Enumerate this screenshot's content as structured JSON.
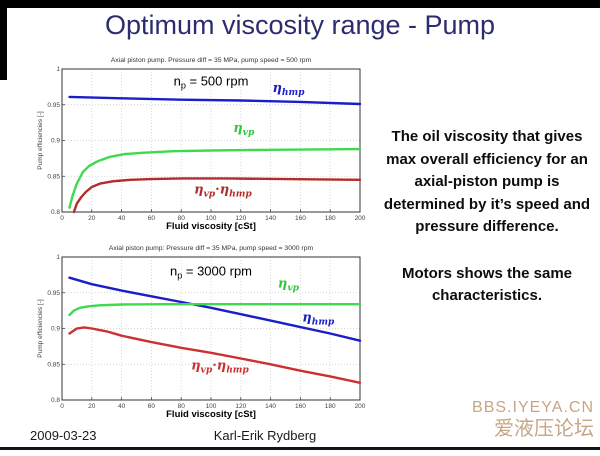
{
  "slide": {
    "title": "Optimum viscosity range - Pump",
    "colors": {
      "title": "#2b2d6e",
      "watermark": "#c7a685"
    },
    "side_note": {
      "para1": "The oil viscosity that gives max overall efficiency for an axial-piston pump is determined by it’s speed and pressure difference.",
      "para2": "Motors shows the same characteristics."
    },
    "footer": {
      "date": "2009-03-23",
      "author": "Karl-Erik Rydberg"
    },
    "watermark": {
      "line1": "BBS.IYEYA.CN",
      "line2": "爱液压论坛"
    }
  },
  "chart_data": [
    {
      "type": "line",
      "title": "Axial piston pump. Pressure diff = 35 MPa, pump speed = 500 rpm",
      "xlabel": "Fluid viscosity [cSt]",
      "ylabel": "Pump efficiencies [-]",
      "xlim": [
        0,
        200
      ],
      "ylim": [
        0.8,
        1
      ],
      "xticks": [
        0,
        20,
        40,
        60,
        80,
        100,
        120,
        140,
        160,
        180,
        200
      ],
      "yticks": [
        0.8,
        0.85,
        0.9,
        0.95,
        1
      ],
      "ytick_labels": [
        "0.8",
        "0.85",
        "0.9",
        "0.95",
        "1"
      ],
      "grid": true,
      "legend_position": "inline-annotations",
      "series": [
        {
          "name": "η{hmp}",
          "color": "#1a1ec8",
          "points": [
            [
              5,
              0.961
            ],
            [
              40,
              0.959
            ],
            [
              80,
              0.957
            ],
            [
              120,
              0.956
            ],
            [
              160,
              0.954
            ],
            [
              200,
              0.951
            ]
          ]
        },
        {
          "name": "η{vp}",
          "color": "#3fd94f",
          "points": [
            [
              5,
              0.806
            ],
            [
              7,
              0.822
            ],
            [
              10,
              0.84
            ],
            [
              14,
              0.856
            ],
            [
              18,
              0.864
            ],
            [
              24,
              0.871
            ],
            [
              32,
              0.877
            ],
            [
              42,
              0.881
            ],
            [
              55,
              0.883
            ],
            [
              75,
              0.885
            ],
            [
              100,
              0.886
            ],
            [
              140,
              0.887
            ],
            [
              200,
              0.888
            ]
          ]
        },
        {
          "name": "η{vp}·η{hmp}",
          "color": "#b52a2a",
          "points": [
            [
              8,
              0.8
            ],
            [
              10,
              0.812
            ],
            [
              13,
              0.821
            ],
            [
              16,
              0.828
            ],
            [
              20,
              0.835
            ],
            [
              26,
              0.84
            ],
            [
              34,
              0.843
            ],
            [
              46,
              0.845
            ],
            [
              60,
              0.846
            ],
            [
              80,
              0.847
            ],
            [
              110,
              0.847
            ],
            [
              150,
              0.846
            ],
            [
              200,
              0.845
            ]
          ]
        }
      ],
      "annotations": [
        {
          "text": "n{p} = 500 rpm",
          "x": 100,
          "y": 0.977,
          "color": "#000000",
          "size": 13,
          "italic": false
        },
        {
          "text": "η{hmp}",
          "x": 152,
          "y": 0.968,
          "color": "#1a1ec8",
          "size": 13,
          "italic": true
        },
        {
          "text": "η{vp}",
          "x": 122,
          "y": 0.912,
          "color": "#2ec73e",
          "size": 13,
          "italic": true
        },
        {
          "text": "η{vp}·η{hmp}",
          "x": 108,
          "y": 0.826,
          "color": "#b52a2a",
          "size": 13,
          "italic": true
        }
      ]
    },
    {
      "type": "line",
      "title": "Axial piston pump: Pressure diff = 35 MPa, pump speed = 3000 rpm",
      "xlabel": "Fluid viscosity [cSt]",
      "ylabel": "Pump efficiencies [-]",
      "xlim": [
        0,
        200
      ],
      "ylim": [
        0.8,
        1
      ],
      "xticks": [
        0,
        20,
        40,
        60,
        80,
        100,
        120,
        140,
        160,
        180,
        200
      ],
      "yticks": [
        0.8,
        0.85,
        0.9,
        0.95,
        1
      ],
      "ytick_labels": [
        "0.8",
        "0.85",
        "0.9",
        "0.95",
        "1"
      ],
      "grid": true,
      "legend_position": "inline-annotations",
      "series": [
        {
          "name": "η{hmp}",
          "color": "#1a1ec8",
          "points": [
            [
              5,
              0.971
            ],
            [
              20,
              0.962
            ],
            [
              40,
              0.953
            ],
            [
              60,
              0.945
            ],
            [
              80,
              0.937
            ],
            [
              100,
              0.929
            ],
            [
              120,
              0.92
            ],
            [
              140,
              0.911
            ],
            [
              160,
              0.902
            ],
            [
              180,
              0.893
            ],
            [
              200,
              0.883
            ]
          ]
        },
        {
          "name": "η{vp}",
          "color": "#3fd94f",
          "points": [
            [
              5,
              0.919
            ],
            [
              8,
              0.925
            ],
            [
              12,
              0.929
            ],
            [
              18,
              0.931
            ],
            [
              25,
              0.9325
            ],
            [
              40,
              0.9335
            ],
            [
              70,
              0.934
            ],
            [
              120,
              0.934
            ],
            [
              200,
              0.934
            ]
          ]
        },
        {
          "name": "η{vp}·η{hmp}",
          "color": "#cc3030",
          "points": [
            [
              5,
              0.893
            ],
            [
              10,
              0.9
            ],
            [
              15,
              0.9015
            ],
            [
              20,
              0.9
            ],
            [
              30,
              0.896
            ],
            [
              40,
              0.89
            ],
            [
              60,
              0.881
            ],
            [
              80,
              0.873
            ],
            [
              100,
              0.866
            ],
            [
              120,
              0.858
            ],
            [
              140,
              0.85
            ],
            [
              160,
              0.841
            ],
            [
              180,
              0.833
            ],
            [
              200,
              0.824
            ]
          ]
        }
      ],
      "annotations": [
        {
          "text": "n{p} = 3000 rpm",
          "x": 100,
          "y": 0.974,
          "color": "#000000",
          "size": 13,
          "italic": false
        },
        {
          "text": "η{vp}",
          "x": 152,
          "y": 0.957,
          "color": "#2ec73e",
          "size": 13,
          "italic": true
        },
        {
          "text": "η{hmp}",
          "x": 172,
          "y": 0.91,
          "color": "#1a1ec8",
          "size": 13,
          "italic": true
        },
        {
          "text": "η{vp}·η{hmp}",
          "x": 106,
          "y": 0.843,
          "color": "#cc3030",
          "size": 13,
          "italic": true
        }
      ]
    }
  ]
}
